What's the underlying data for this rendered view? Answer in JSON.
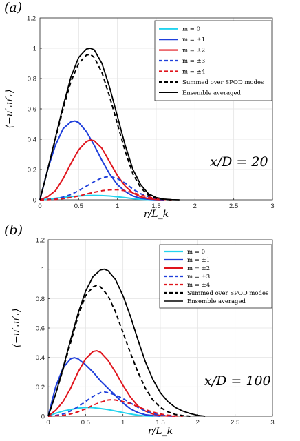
{
  "chart_data": [
    {
      "type": "line",
      "panel_label": "(a)",
      "xlabel": "r/L_k",
      "ylabel": "⟨−u′ₓu′ᵣ⟩",
      "annotation": "x/D = 20",
      "xlim": [
        0,
        3
      ],
      "ylim": [
        0,
        1.2
      ],
      "xticks": [
        "0",
        "0.5",
        "1",
        "1.5",
        "2",
        "2.5",
        "3"
      ],
      "yticks": [
        "0",
        "0.2",
        "0.4",
        "0.6",
        "0.8",
        "1"
      ],
      "top_tick_label": "1.2",
      "grid": true,
      "legend_position": "top-right",
      "series": [
        {
          "name": "m = 0",
          "color": "#22d3ee",
          "dash": "solid",
          "x": [
            0,
            0.1,
            0.2,
            0.3,
            0.4,
            0.5,
            0.6,
            0.7,
            0.8,
            0.9,
            1.0,
            1.1,
            1.2,
            1.3,
            1.4,
            1.5,
            1.6
          ],
          "y": [
            0,
            0.004,
            0.01,
            0.016,
            0.021,
            0.025,
            0.028,
            0.029,
            0.028,
            0.025,
            0.02,
            0.014,
            0.008,
            0.004,
            0.002,
            0,
            0
          ]
        },
        {
          "name": "m = ±1",
          "color": "#1f3fdb",
          "dash": "solid",
          "x": [
            0,
            0.05,
            0.1,
            0.2,
            0.3,
            0.4,
            0.45,
            0.5,
            0.6,
            0.7,
            0.8,
            0.9,
            1.0,
            1.1,
            1.2,
            1.3,
            1.4,
            1.5,
            1.6
          ],
          "y": [
            0,
            0.1,
            0.2,
            0.36,
            0.47,
            0.515,
            0.52,
            0.51,
            0.45,
            0.36,
            0.26,
            0.17,
            0.1,
            0.055,
            0.025,
            0.01,
            0.004,
            0.001,
            0
          ]
        },
        {
          "name": "m = ±2",
          "color": "#e0141c",
          "dash": "solid",
          "x": [
            0,
            0.1,
            0.2,
            0.3,
            0.4,
            0.5,
            0.6,
            0.65,
            0.7,
            0.8,
            0.9,
            1.0,
            1.1,
            1.2,
            1.3,
            1.4,
            1.5,
            1.6
          ],
          "y": [
            0,
            0.02,
            0.06,
            0.14,
            0.24,
            0.33,
            0.385,
            0.395,
            0.39,
            0.34,
            0.25,
            0.16,
            0.09,
            0.045,
            0.02,
            0.008,
            0.002,
            0
          ]
        },
        {
          "name": "m = ±3",
          "color": "#1f3fdb",
          "dash": "dashed",
          "x": [
            0,
            0.1,
            0.2,
            0.3,
            0.4,
            0.5,
            0.6,
            0.7,
            0.8,
            0.9,
            1.0,
            1.1,
            1.2,
            1.3,
            1.4,
            1.5,
            1.6
          ],
          "y": [
            0,
            0.003,
            0.008,
            0.018,
            0.035,
            0.06,
            0.09,
            0.12,
            0.145,
            0.155,
            0.14,
            0.11,
            0.07,
            0.04,
            0.02,
            0.008,
            0
          ]
        },
        {
          "name": "m = ±4",
          "color": "#e0141c",
          "dash": "dashed",
          "x": [
            0,
            0.2,
            0.3,
            0.4,
            0.5,
            0.6,
            0.7,
            0.8,
            0.9,
            1.0,
            1.1,
            1.2,
            1.3,
            1.4,
            1.5,
            1.6,
            1.7
          ],
          "y": [
            0,
            0.003,
            0.008,
            0.015,
            0.025,
            0.038,
            0.05,
            0.06,
            0.066,
            0.067,
            0.06,
            0.047,
            0.032,
            0.018,
            0.008,
            0.003,
            0
          ]
        },
        {
          "name": "Summed over SPOD modes",
          "color": "#000000",
          "dash": "dashed",
          "x": [
            0,
            0.05,
            0.1,
            0.2,
            0.3,
            0.4,
            0.5,
            0.6,
            0.65,
            0.7,
            0.8,
            0.9,
            1.0,
            1.1,
            1.2,
            1.3,
            1.4,
            1.5,
            1.6,
            1.7
          ],
          "y": [
            0,
            0.1,
            0.2,
            0.4,
            0.6,
            0.78,
            0.9,
            0.955,
            0.96,
            0.94,
            0.84,
            0.68,
            0.5,
            0.32,
            0.17,
            0.08,
            0.03,
            0.01,
            0.003,
            0
          ]
        },
        {
          "name": "Ensemble averaged",
          "color": "#000000",
          "dash": "solid-thin",
          "x": [
            0,
            0.05,
            0.1,
            0.2,
            0.3,
            0.4,
            0.5,
            0.6,
            0.65,
            0.7,
            0.8,
            0.9,
            1.0,
            1.1,
            1.2,
            1.3,
            1.4,
            1.5,
            1.6,
            1.7,
            1.8
          ],
          "y": [
            0,
            0.1,
            0.2,
            0.41,
            0.62,
            0.81,
            0.94,
            0.995,
            1.0,
            0.99,
            0.9,
            0.74,
            0.55,
            0.36,
            0.2,
            0.1,
            0.04,
            0.015,
            0.005,
            0.001,
            0
          ]
        }
      ]
    },
    {
      "type": "line",
      "panel_label": "(b)",
      "xlabel": "r/L_k",
      "ylabel": "⟨−u′ₓu′ᵣ⟩",
      "annotation": "x/D = 100",
      "xlim": [
        0,
        3
      ],
      "ylim": [
        0,
        1.2
      ],
      "xticks": [
        "0",
        "0.5",
        "1",
        "1.5",
        "2",
        "2.5",
        "3"
      ],
      "yticks": [
        "0",
        "0.2",
        "0.4",
        "0.6",
        "0.8",
        "1",
        "1.2"
      ],
      "grid": true,
      "legend_position": "top-right",
      "series": [
        {
          "name": "m = 0",
          "color": "#22d3ee",
          "dash": "solid",
          "x": [
            0,
            0.1,
            0.2,
            0.3,
            0.4,
            0.5,
            0.6,
            0.7,
            0.8,
            0.9,
            1.0,
            1.1,
            1.2,
            1.3,
            1.4
          ],
          "y": [
            0,
            0.02,
            0.035,
            0.045,
            0.055,
            0.06,
            0.058,
            0.052,
            0.045,
            0.035,
            0.025,
            0.015,
            0.007,
            0.002,
            0
          ]
        },
        {
          "name": "m = ±1",
          "color": "#1f3fdb",
          "dash": "solid",
          "x": [
            0,
            0.05,
            0.1,
            0.2,
            0.3,
            0.35,
            0.4,
            0.5,
            0.6,
            0.7,
            0.8,
            0.9,
            1.0,
            1.1,
            1.2,
            1.3,
            1.4,
            1.5
          ],
          "y": [
            0,
            0.1,
            0.2,
            0.33,
            0.39,
            0.398,
            0.39,
            0.35,
            0.3,
            0.24,
            0.19,
            0.14,
            0.09,
            0.05,
            0.025,
            0.01,
            0.004,
            0
          ]
        },
        {
          "name": "m = ±2",
          "color": "#e0141c",
          "dash": "solid",
          "x": [
            0,
            0.1,
            0.2,
            0.3,
            0.4,
            0.5,
            0.6,
            0.65,
            0.7,
            0.8,
            0.9,
            1.0,
            1.1,
            1.2,
            1.3,
            1.4,
            1.5,
            1.6,
            1.7
          ],
          "y": [
            0,
            0.04,
            0.1,
            0.19,
            0.3,
            0.39,
            0.44,
            0.445,
            0.435,
            0.38,
            0.3,
            0.21,
            0.13,
            0.07,
            0.035,
            0.015,
            0.005,
            0.001,
            0
          ]
        },
        {
          "name": "m = ±3",
          "color": "#1f3fdb",
          "dash": "dashed",
          "x": [
            0,
            0.1,
            0.2,
            0.3,
            0.4,
            0.5,
            0.6,
            0.7,
            0.75,
            0.8,
            0.9,
            1.0,
            1.1,
            1.2,
            1.3,
            1.4,
            1.5,
            1.6,
            1.7
          ],
          "y": [
            0,
            0.005,
            0.015,
            0.035,
            0.065,
            0.1,
            0.135,
            0.16,
            0.165,
            0.16,
            0.145,
            0.12,
            0.09,
            0.06,
            0.035,
            0.018,
            0.008,
            0.003,
            0
          ]
        },
        {
          "name": "m = ±4",
          "color": "#e0141c",
          "dash": "dashed",
          "x": [
            0,
            0.2,
            0.3,
            0.4,
            0.5,
            0.6,
            0.7,
            0.8,
            0.85,
            0.9,
            1.0,
            1.1,
            1.2,
            1.3,
            1.4,
            1.5,
            1.6,
            1.7,
            1.8
          ],
          "y": [
            0,
            0.005,
            0.015,
            0.03,
            0.05,
            0.075,
            0.095,
            0.11,
            0.112,
            0.11,
            0.1,
            0.085,
            0.065,
            0.045,
            0.028,
            0.015,
            0.007,
            0.002,
            0
          ]
        },
        {
          "name": "Summed over SPOD modes",
          "color": "#000000",
          "dash": "dashed",
          "x": [
            0,
            0.1,
            0.2,
            0.3,
            0.4,
            0.5,
            0.6,
            0.65,
            0.7,
            0.8,
            0.9,
            1.0,
            1.1,
            1.2,
            1.3,
            1.4,
            1.5,
            1.6,
            1.7,
            1.8,
            1.9
          ],
          "y": [
            0,
            0.15,
            0.32,
            0.5,
            0.68,
            0.82,
            0.88,
            0.89,
            0.88,
            0.82,
            0.71,
            0.57,
            0.43,
            0.3,
            0.19,
            0.11,
            0.06,
            0.03,
            0.012,
            0.004,
            0
          ]
        },
        {
          "name": "Ensemble averaged",
          "color": "#000000",
          "dash": "solid-thin",
          "x": [
            0,
            0.1,
            0.2,
            0.3,
            0.4,
            0.5,
            0.6,
            0.7,
            0.75,
            0.8,
            0.9,
            1.0,
            1.1,
            1.2,
            1.3,
            1.4,
            1.5,
            1.6,
            1.7,
            1.8,
            1.9,
            2.0,
            2.1
          ],
          "y": [
            0,
            0.15,
            0.33,
            0.52,
            0.7,
            0.85,
            0.95,
            0.995,
            1.0,
            0.99,
            0.93,
            0.82,
            0.68,
            0.52,
            0.37,
            0.25,
            0.16,
            0.1,
            0.06,
            0.035,
            0.018,
            0.006,
            0
          ]
        }
      ]
    }
  ]
}
